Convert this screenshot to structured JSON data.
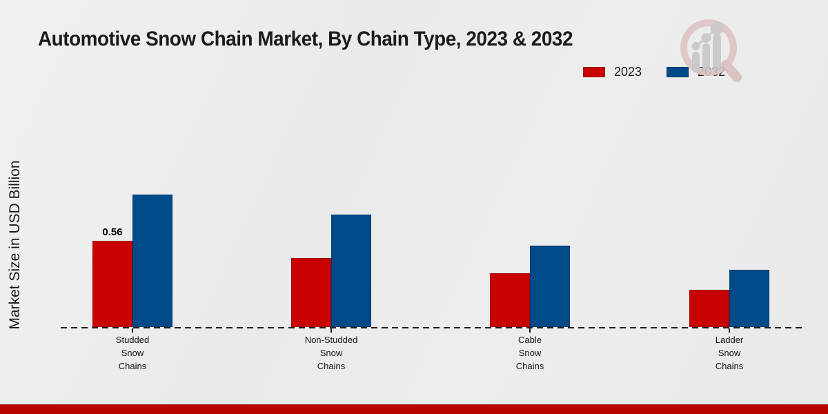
{
  "chart_data": {
    "type": "bar",
    "title": "Automotive Snow Chain Market, By Chain Type, 2023 & 2032",
    "xlabel": "",
    "ylabel": "Market Size in USD Billion",
    "categories": [
      [
        "Studded",
        "Snow",
        "Chains"
      ],
      [
        "Non-Studded",
        "Snow",
        "Chains"
      ],
      [
        "Cable",
        "Snow",
        "Chains"
      ],
      [
        "Ladder",
        "Snow",
        "Chains"
      ]
    ],
    "series": [
      {
        "name": "2023",
        "color": "#c90101",
        "values": [
          0.56,
          0.45,
          0.35,
          0.24
        ]
      },
      {
        "name": "2032",
        "color": "#004a8a",
        "values": [
          0.86,
          0.73,
          0.53,
          0.37
        ]
      }
    ],
    "data_labels": [
      {
        "series": "2023",
        "category_index": 0,
        "text": "0.56"
      }
    ],
    "ylim": [
      0,
      1.0
    ],
    "grid": false,
    "axis_style": "dashed-baseline-only",
    "legend_position": "top-right"
  },
  "legend": {
    "items": [
      {
        "label": "2023",
        "color": "#c90101"
      },
      {
        "label": "2032",
        "color": "#004a8a"
      }
    ]
  },
  "colors": {
    "background": "#ebebeb",
    "footer_band": "#b90504",
    "axis": "#1b1b1b",
    "bar_2023": "#c90101",
    "bar_2032": "#004a8a"
  },
  "icons": {
    "logo_watermark": "magnifier-bar-chart-icon"
  }
}
